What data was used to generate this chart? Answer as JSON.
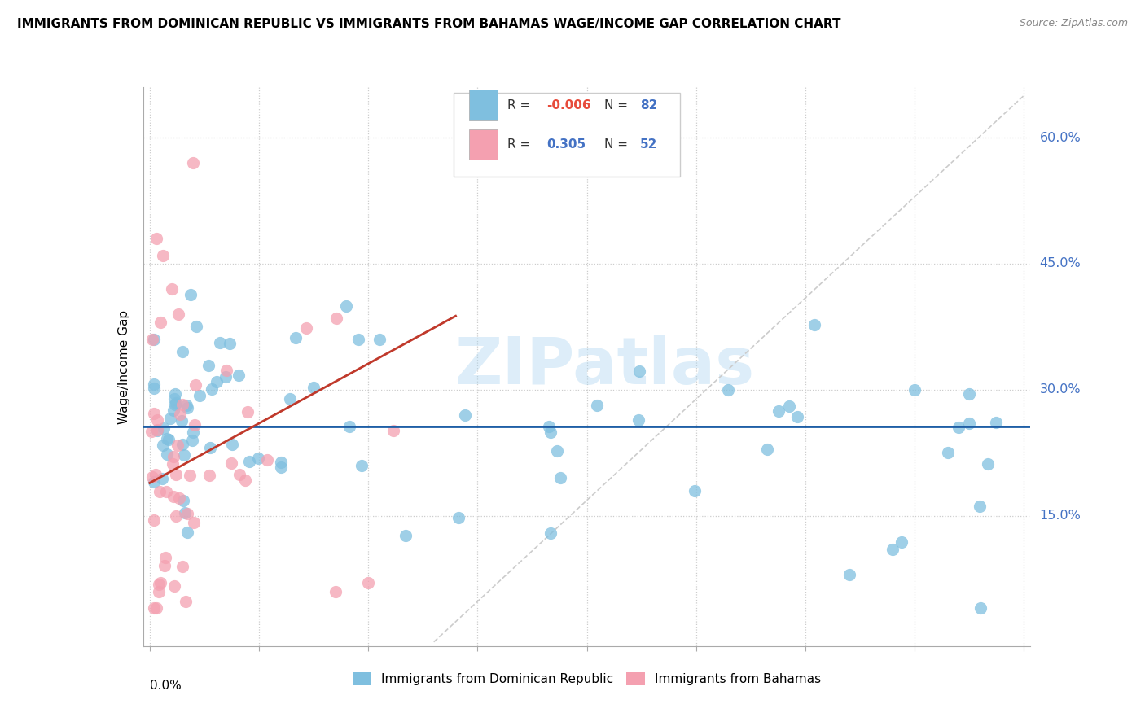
{
  "title": "IMMIGRANTS FROM DOMINICAN REPUBLIC VS IMMIGRANTS FROM BAHAMAS WAGE/INCOME GAP CORRELATION CHART",
  "source": "Source: ZipAtlas.com",
  "ylabel": "Wage/Income Gap",
  "legend_label1": "Immigrants from Dominican Republic",
  "legend_label2": "Immigrants from Bahamas",
  "R1": -0.006,
  "N1": 82,
  "R2": 0.305,
  "N2": 52,
  "color1": "#7fbfdf",
  "color2": "#f4a0b0",
  "trendline1_color": "#1f5fa6",
  "trendline2_color": "#c0392b",
  "watermark": "ZIPatlas",
  "xlim_max": 0.4,
  "ylim_min": 0.0,
  "ylim_max": 0.65,
  "ytick_labels": [
    "15.0%",
    "30.0%",
    "45.0%",
    "60.0%"
  ],
  "ytick_values": [
    0.15,
    0.3,
    0.45,
    0.6
  ]
}
